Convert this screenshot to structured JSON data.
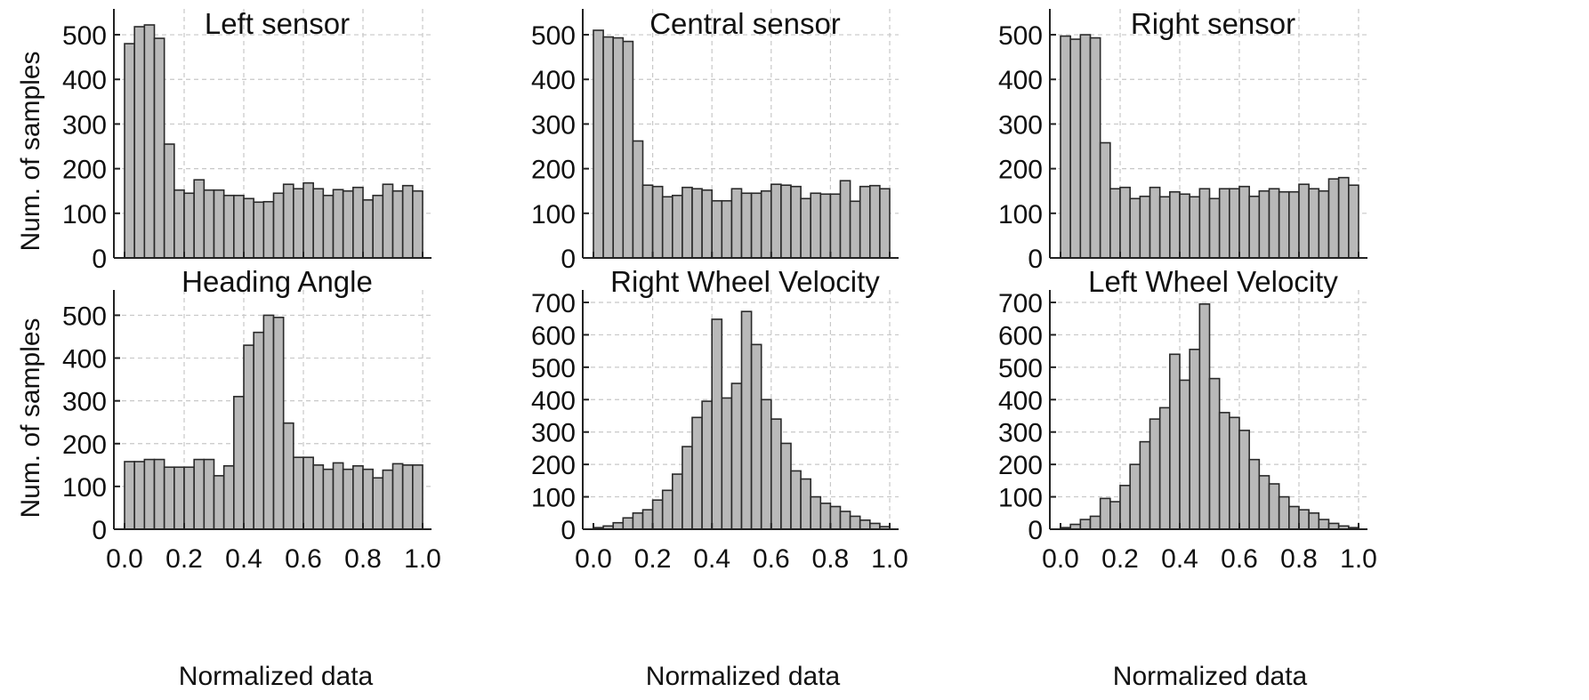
{
  "figure": {
    "y_axis_label": "Num. of samples",
    "x_axis_label": "Normalized data"
  },
  "chart_data": [
    {
      "type": "bar",
      "title": "Left sensor",
      "ylabel": "Num. of samples",
      "xlabel": "",
      "xlim": [
        0,
        1
      ],
      "ylim": [
        0,
        530
      ],
      "xticks": [
        "0.0",
        "0.2",
        "0.4",
        "0.6",
        "0.8",
        "1.0"
      ],
      "yticks": [
        0,
        100,
        200,
        300,
        400,
        500
      ],
      "grid": true,
      "values": [
        480,
        518,
        522,
        492,
        255,
        152,
        145,
        175,
        152,
        152,
        140,
        140,
        133,
        125,
        126,
        145,
        165,
        155,
        168,
        155,
        140,
        153,
        150,
        158,
        130,
        140,
        165,
        150,
        162,
        150
      ]
    },
    {
      "type": "bar",
      "title": "Central sensor",
      "ylabel": "",
      "xlabel": "",
      "xlim": [
        0,
        1
      ],
      "ylim": [
        0,
        530
      ],
      "xticks": [
        "0.0",
        "0.2",
        "0.4",
        "0.6",
        "0.8",
        "1.0"
      ],
      "yticks": [
        0,
        100,
        200,
        300,
        400,
        500
      ],
      "grid": true,
      "values": [
        510,
        495,
        493,
        485,
        262,
        163,
        160,
        137,
        140,
        158,
        155,
        152,
        128,
        128,
        155,
        145,
        145,
        150,
        165,
        163,
        160,
        133,
        145,
        143,
        143,
        173,
        127,
        160,
        162,
        155
      ]
    },
    {
      "type": "bar",
      "title": "Right sensor",
      "ylabel": "",
      "xlabel": "",
      "xlim": [
        0,
        1
      ],
      "ylim": [
        0,
        530
      ],
      "xticks": [
        "0.0",
        "0.2",
        "0.4",
        "0.6",
        "0.8",
        "1.0"
      ],
      "yticks": [
        0,
        100,
        200,
        300,
        400,
        500
      ],
      "grid": true,
      "values": [
        497,
        490,
        500,
        493,
        258,
        155,
        158,
        133,
        138,
        158,
        137,
        148,
        143,
        137,
        155,
        133,
        155,
        155,
        160,
        138,
        150,
        155,
        148,
        148,
        165,
        155,
        150,
        177,
        180,
        163
      ]
    },
    {
      "type": "bar",
      "title": "Heading Angle",
      "ylabel": "Num. of samples",
      "xlabel": "Normalized data",
      "xlim": [
        0,
        1
      ],
      "ylim": [
        0,
        530
      ],
      "xticks": [
        "0.0",
        "0.2",
        "0.4",
        "0.6",
        "0.8",
        "1.0"
      ],
      "yticks": [
        0,
        100,
        200,
        300,
        400,
        500
      ],
      "grid": true,
      "values": [
        158,
        158,
        163,
        163,
        145,
        145,
        145,
        163,
        163,
        125,
        148,
        310,
        430,
        460,
        500,
        495,
        248,
        168,
        168,
        150,
        140,
        155,
        140,
        148,
        140,
        120,
        138,
        153,
        150,
        150
      ]
    },
    {
      "type": "bar",
      "title": "Right Wheel Velocity",
      "ylabel": "",
      "xlabel": "Normalized data",
      "xlim": [
        0,
        1
      ],
      "ylim": [
        0,
        700
      ],
      "xticks": [
        "0.0",
        "0.2",
        "0.4",
        "0.6",
        "0.8",
        "1.0"
      ],
      "yticks": [
        0,
        100,
        200,
        300,
        400,
        500,
        600,
        700
      ],
      "grid": true,
      "values": [
        5,
        10,
        20,
        35,
        50,
        60,
        90,
        120,
        170,
        255,
        345,
        395,
        648,
        405,
        450,
        672,
        570,
        400,
        340,
        265,
        180,
        155,
        100,
        80,
        70,
        55,
        40,
        28,
        18,
        8
      ]
    },
    {
      "type": "bar",
      "title": "Left Wheel Velocity",
      "ylabel": "",
      "xlabel": "Normalized data",
      "xlim": [
        0,
        1
      ],
      "ylim": [
        0,
        700
      ],
      "xticks": [
        "0.0",
        "0.2",
        "0.4",
        "0.6",
        "0.8",
        "1.0"
      ],
      "yticks": [
        0,
        100,
        200,
        300,
        400,
        500,
        600,
        700
      ],
      "grid": true,
      "values": [
        5,
        15,
        30,
        40,
        95,
        85,
        135,
        200,
        270,
        340,
        375,
        540,
        460,
        555,
        695,
        465,
        360,
        345,
        305,
        215,
        165,
        140,
        100,
        70,
        60,
        50,
        30,
        18,
        10,
        5
      ]
    }
  ]
}
